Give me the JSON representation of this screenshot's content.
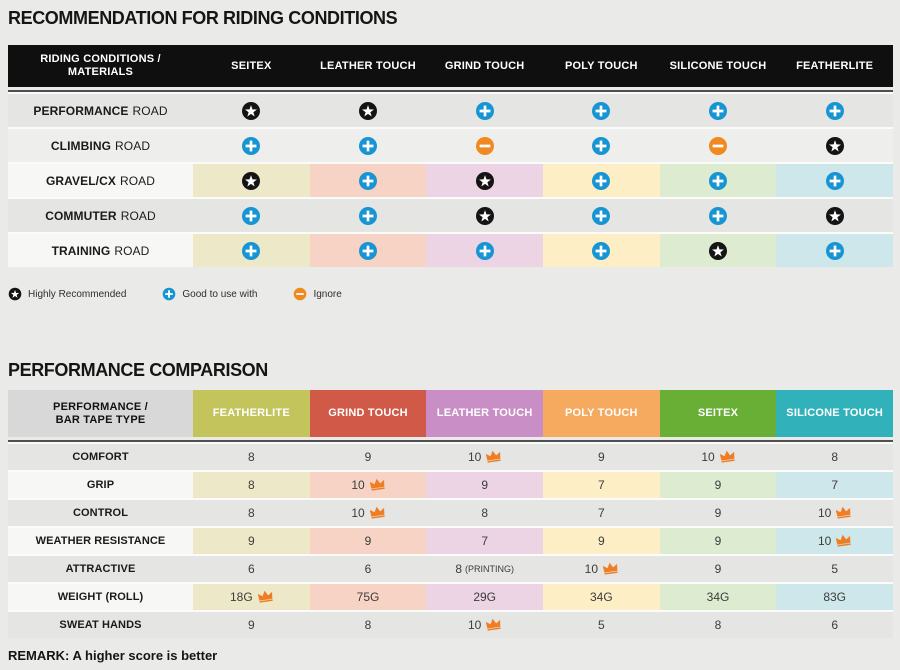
{
  "colors": {
    "page_bg": "#eaeae8",
    "t1_header_bg": "#0f0f0f",
    "row_plain": "#e5e5e3",
    "row_plain_light": "#eeeeec",
    "row_label_lite": "#f7f7f5",
    "corner2_bg": "#d8d8d8",
    "pale": [
      "#ede9c8",
      "#f6d3c5",
      "#ecd4e5",
      "#fdeec6",
      "#ddecd0",
      "#cee7ea"
    ],
    "icon_star": "#141414",
    "icon_plus": "#1795d3",
    "icon_minus": "#f0891f",
    "icon_crown": "#ef7d23"
  },
  "table1": {
    "title": "RECOMMENDATION FOR RIDING CONDITIONS",
    "corner_lines": [
      "RIDING CONDITIONS /",
      "MATERIALS"
    ],
    "columns": [
      "SEITEX",
      "LEATHER TOUCH",
      "GRIND TOUCH",
      "POLY TOUCH",
      "SILICONE TOUCH",
      "FEATHERLITE"
    ],
    "rows": [
      {
        "label_bold": "PERFORMANCE",
        "label_rest": "ROAD",
        "shade": "a",
        "colored": false,
        "cells": [
          "star",
          "star",
          "plus",
          "plus",
          "plus",
          "plus"
        ]
      },
      {
        "label_bold": "CLIMBING",
        "label_rest": "ROAD",
        "shade": "b",
        "colored": false,
        "cells": [
          "plus",
          "plus",
          "minus",
          "plus",
          "minus",
          "star"
        ]
      },
      {
        "label_bold": "GRAVEL/CX",
        "label_rest": "ROAD",
        "shade": "a",
        "colored": true,
        "cells": [
          "star",
          "plus",
          "star",
          "plus",
          "plus",
          "plus"
        ]
      },
      {
        "label_bold": "COMMUTER",
        "label_rest": "ROAD",
        "shade": "a",
        "colored": false,
        "cells": [
          "plus",
          "plus",
          "star",
          "plus",
          "plus",
          "star"
        ]
      },
      {
        "label_bold": "TRAINING",
        "label_rest": "ROAD",
        "shade": "a",
        "colored": true,
        "cells": [
          "plus",
          "plus",
          "plus",
          "plus",
          "star",
          "plus"
        ]
      }
    ],
    "legend": [
      {
        "icon": "star",
        "label": "Highly Recommended"
      },
      {
        "icon": "plus",
        "label": "Good to use with"
      },
      {
        "icon": "minus",
        "label": "Ignore"
      }
    ]
  },
  "table2": {
    "title": "PERFORMANCE COMPARISON",
    "corner_lines": [
      "PERFORMANCE /",
      "BAR TAPE TYPE"
    ],
    "columns": [
      {
        "label": "FEATHERLITE",
        "color": "#c3c45c"
      },
      {
        "label": "GRIND TOUCH",
        "color": "#d15947"
      },
      {
        "label": "LEATHER TOUCH",
        "color": "#c98ec5"
      },
      {
        "label": "POLY TOUCH",
        "color": "#f5aa5f"
      },
      {
        "label": "SEITEX",
        "color": "#69ae35"
      },
      {
        "label": "SILICONE TOUCH",
        "color": "#31b2bb"
      }
    ],
    "rows": [
      {
        "label": "COMFORT",
        "colored": false,
        "cells": [
          {
            "v": "8"
          },
          {
            "v": "9"
          },
          {
            "v": "10",
            "crown": true
          },
          {
            "v": "9"
          },
          {
            "v": "10",
            "crown": true
          },
          {
            "v": "8"
          }
        ]
      },
      {
        "label": "GRIP",
        "colored": true,
        "cells": [
          {
            "v": "8"
          },
          {
            "v": "10",
            "crown": true
          },
          {
            "v": "9"
          },
          {
            "v": "7"
          },
          {
            "v": "9"
          },
          {
            "v": "7"
          }
        ]
      },
      {
        "label": "CONTROL",
        "colored": false,
        "cells": [
          {
            "v": "8"
          },
          {
            "v": "10",
            "crown": true
          },
          {
            "v": "8"
          },
          {
            "v": "7"
          },
          {
            "v": "9"
          },
          {
            "v": "10",
            "crown": true
          }
        ]
      },
      {
        "label": "WEATHER RESISTANCE",
        "colored": true,
        "cells": [
          {
            "v": "9"
          },
          {
            "v": "9"
          },
          {
            "v": "7"
          },
          {
            "v": "9"
          },
          {
            "v": "9"
          },
          {
            "v": "10",
            "crown": true
          }
        ]
      },
      {
        "label": "ATTRACTIVE",
        "colored": false,
        "cells": [
          {
            "v": "6"
          },
          {
            "v": "6"
          },
          {
            "v": "8",
            "suffix": "(PRINTING)"
          },
          {
            "v": "10",
            "crown": true
          },
          {
            "v": "9"
          },
          {
            "v": "5"
          }
        ]
      },
      {
        "label": "WEIGHT (ROLL)",
        "colored": true,
        "cells": [
          {
            "v": "18G",
            "crown": true
          },
          {
            "v": "75G"
          },
          {
            "v": "29G"
          },
          {
            "v": "34G"
          },
          {
            "v": "34G"
          },
          {
            "v": "83G"
          }
        ]
      },
      {
        "label": "SWEAT HANDS",
        "colored": false,
        "cells": [
          {
            "v": "9"
          },
          {
            "v": "8"
          },
          {
            "v": "10",
            "crown": true
          },
          {
            "v": "5"
          },
          {
            "v": "8"
          },
          {
            "v": "6"
          }
        ]
      }
    ],
    "remark": "REMARK: A higher score is better"
  },
  "chart_data": [
    {
      "type": "table",
      "title": "RECOMMENDATION FOR RIDING CONDITIONS",
      "columns": [
        "SEITEX",
        "LEATHER TOUCH",
        "GRIND TOUCH",
        "POLY TOUCH",
        "SILICONE TOUCH",
        "FEATHERLITE"
      ],
      "rows": [
        "PERFORMANCE ROAD",
        "CLIMBING ROAD",
        "GRAVEL/CX ROAD",
        "COMMUTER ROAD",
        "TRAINING ROAD"
      ],
      "values": [
        [
          "highly-recommended",
          "highly-recommended",
          "good-to-use-with",
          "good-to-use-with",
          "good-to-use-with",
          "good-to-use-with"
        ],
        [
          "good-to-use-with",
          "good-to-use-with",
          "ignore",
          "good-to-use-with",
          "ignore",
          "highly-recommended"
        ],
        [
          "highly-recommended",
          "good-to-use-with",
          "highly-recommended",
          "good-to-use-with",
          "good-to-use-with",
          "good-to-use-with"
        ],
        [
          "good-to-use-with",
          "good-to-use-with",
          "highly-recommended",
          "good-to-use-with",
          "good-to-use-with",
          "highly-recommended"
        ],
        [
          "good-to-use-with",
          "good-to-use-with",
          "good-to-use-with",
          "good-to-use-with",
          "highly-recommended",
          "good-to-use-with"
        ]
      ],
      "legend": [
        "Highly Recommended",
        "Good to use with",
        "Ignore"
      ]
    },
    {
      "type": "table",
      "title": "PERFORMANCE COMPARISON",
      "columns": [
        "FEATHERLITE",
        "GRIND TOUCH",
        "LEATHER TOUCH",
        "POLY TOUCH",
        "SEITEX",
        "SILICONE TOUCH"
      ],
      "rows": [
        "COMFORT",
        "GRIP",
        "CONTROL",
        "WEATHER RESISTANCE",
        "ATTRACTIVE",
        "WEIGHT (ROLL)",
        "SWEAT HANDS"
      ],
      "values": [
        [
          "8",
          "9",
          "10 (best)",
          "9",
          "10 (best)",
          "8"
        ],
        [
          "8",
          "10 (best)",
          "9",
          "7",
          "9",
          "7"
        ],
        [
          "8",
          "10 (best)",
          "8",
          "7",
          "9",
          "10 (best)"
        ],
        [
          "9",
          "9",
          "7",
          "9",
          "9",
          "10 (best)"
        ],
        [
          "6",
          "6",
          "8 (PRINTING)",
          "10 (best)",
          "9",
          "5"
        ],
        [
          "18G (best)",
          "75G",
          "29G",
          "34G",
          "34G",
          "83G"
        ],
        [
          "9",
          "8",
          "10 (best)",
          "5",
          "8",
          "6"
        ]
      ],
      "remark": "REMARK: A higher score is better"
    }
  ]
}
